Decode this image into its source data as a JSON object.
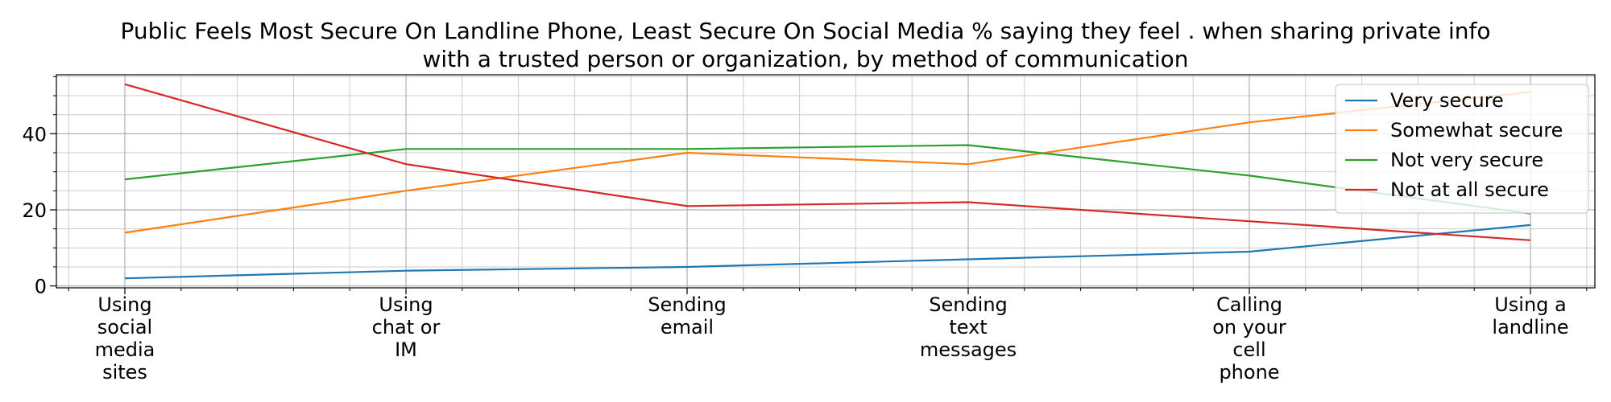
{
  "chart_data": {
    "type": "line",
    "title_lines": [
      "Public Feels Most Secure On Landline Phone, Least Secure On Social Media % saying they feel . when sharing private info",
      "with a trusted person or organization, by method of communication"
    ],
    "categories": [
      [
        "Using",
        "social",
        "media",
        "sites"
      ],
      [
        "Using",
        "chat or",
        "IM"
      ],
      [
        "Sending",
        "email"
      ],
      [
        "Sending",
        "text",
        "messages"
      ],
      [
        "Calling",
        "on your",
        "cell",
        "phone"
      ],
      [
        "Using a",
        "landline"
      ]
    ],
    "series": [
      {
        "name": "Very secure",
        "color": "#1f77b4",
        "values": [
          2,
          4,
          5,
          7,
          9,
          16
        ]
      },
      {
        "name": "Somewhat secure",
        "color": "#ff7f0e",
        "values": [
          14,
          25,
          35,
          32,
          43,
          51
        ]
      },
      {
        "name": "Not very secure",
        "color": "#2ca02c",
        "values": [
          28,
          36,
          36,
          37,
          29,
          19
        ]
      },
      {
        "name": "Not at all secure",
        "color": "#d62728",
        "values": [
          53,
          32,
          21,
          22,
          17,
          12
        ]
      }
    ],
    "yticks": [
      "0",
      "20",
      "40"
    ],
    "ylim": [
      -0.5,
      55.5
    ],
    "grid": true,
    "legend_position": "top-right"
  }
}
